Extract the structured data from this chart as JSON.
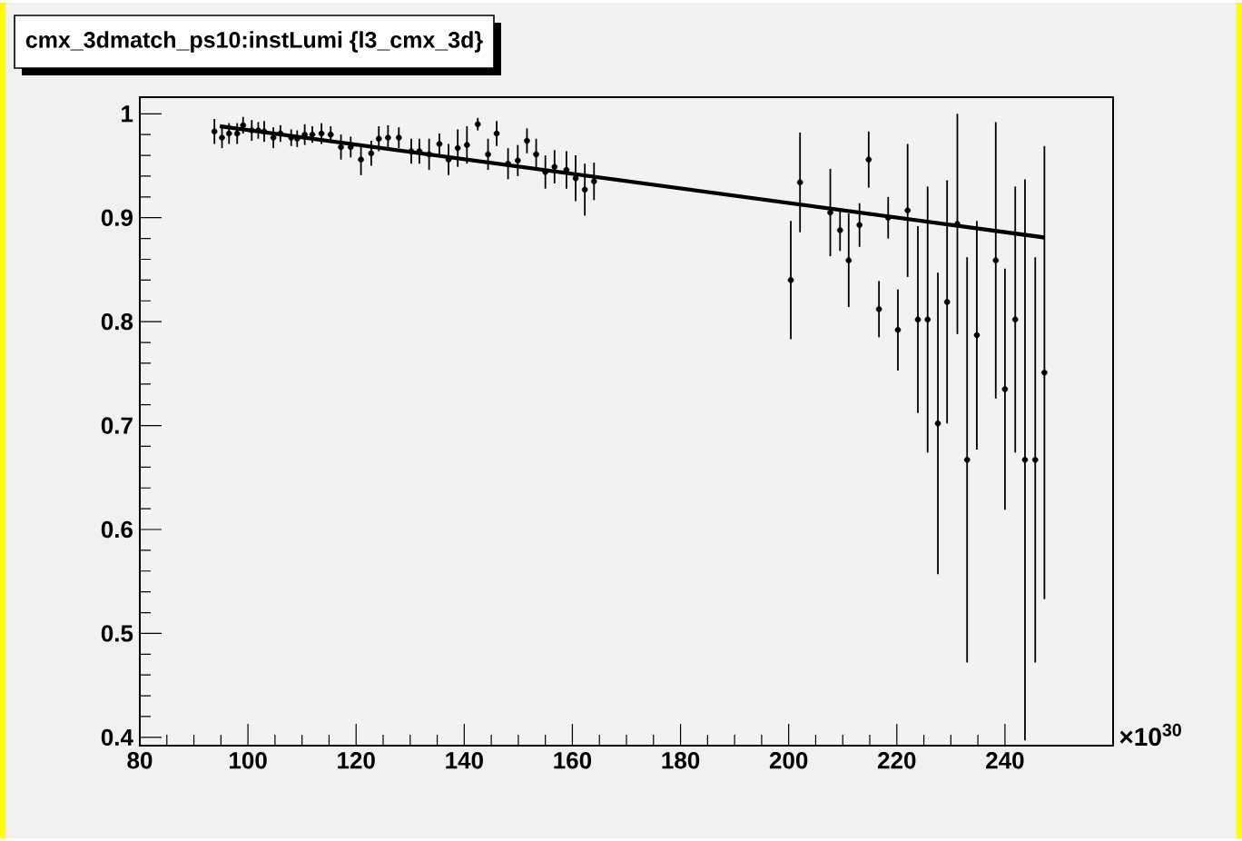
{
  "chart_data": {
    "type": "scatter",
    "title": "cmx_3dmatch_ps10:instLumi {l3_cmx_3d}",
    "annotations": [
      "×10$^{30}$"
    ],
    "marker": "circle",
    "xlim": [
      80,
      260
    ],
    "ylim": [
      0.392,
      1.016
    ],
    "xticks": [
      80,
      100,
      120,
      140,
      160,
      180,
      200,
      220,
      240
    ],
    "yticks": [
      0.4,
      0.5,
      0.6,
      0.7,
      0.8,
      0.9,
      1
    ],
    "series": [
      {
        "color": "#000000",
        "x": [
          93.8,
          95.2,
          96.5,
          98.0,
          99.1,
          100.7,
          101.9,
          103.0,
          104.7,
          106.0,
          108.0,
          109.1,
          110.5,
          111.9,
          113.6,
          115.3,
          117.2,
          119.0,
          120.9,
          122.8,
          124.2,
          125.9,
          127.9,
          130.2,
          131.7,
          133.5,
          135.4,
          137.1,
          138.8,
          140.5,
          142.5,
          144.4,
          146.0,
          148.1,
          149.9,
          151.6,
          153.3,
          155.0,
          156.7,
          158.9,
          160.6,
          162.3,
          164.0,
          200.4,
          202.1,
          207.7,
          209.5,
          211.1,
          213.1,
          214.8,
          216.7,
          218.4,
          220.2,
          222.0,
          223.9,
          225.7,
          227.6,
          229.3,
          231.2,
          233.0,
          234.8,
          238.3,
          240.0,
          241.9,
          243.7,
          245.6,
          247.3
        ],
        "values": [
          0.983,
          0.977,
          0.981,
          0.981,
          0.989,
          0.984,
          0.984,
          0.983,
          0.977,
          0.981,
          0.977,
          0.976,
          0.98,
          0.98,
          0.981,
          0.98,
          0.968,
          0.968,
          0.956,
          0.962,
          0.976,
          0.977,
          0.977,
          0.964,
          0.964,
          0.961,
          0.971,
          0.956,
          0.967,
          0.97,
          0.99,
          0.961,
          0.981,
          0.952,
          0.955,
          0.974,
          0.961,
          0.944,
          0.949,
          0.946,
          0.938,
          0.927,
          0.935,
          0.84,
          0.934,
          0.905,
          0.888,
          0.859,
          0.893,
          0.956,
          0.812,
          0.9,
          0.792,
          0.907,
          0.802,
          0.802,
          0.702,
          0.819,
          0.894,
          0.667,
          0.787,
          0.859,
          0.735,
          0.802,
          0.667,
          0.667,
          0.751
        ],
        "errors": [
          0.012,
          0.01,
          0.01,
          0.01,
          0.008,
          0.01,
          0.008,
          0.01,
          0.01,
          0.008,
          0.008,
          0.008,
          0.01,
          0.008,
          0.01,
          0.008,
          0.012,
          0.01,
          0.015,
          0.012,
          0.012,
          0.012,
          0.01,
          0.012,
          0.012,
          0.015,
          0.01,
          0.015,
          0.018,
          0.018,
          0.006,
          0.015,
          0.012,
          0.015,
          0.015,
          0.012,
          0.015,
          0.016,
          0.016,
          0.018,
          0.022,
          0.025,
          0.018,
          0.057,
          0.048,
          0.042,
          0.02,
          0.045,
          0.021,
          0.027,
          0.027,
          0.02,
          0.039,
          0.064,
          0.09,
          0.128,
          0.145,
          0.117,
          0.106,
          0.195,
          0.11,
          0.133,
          0.116,
          0.128,
          0.27,
          0.195,
          0.218
        ]
      },
      {
        "type": "line",
        "marker": "none",
        "color": "#000000",
        "x": [
          94.8,
          247.3
        ],
        "values": [
          0.988,
          0.881
        ]
      }
    ]
  }
}
